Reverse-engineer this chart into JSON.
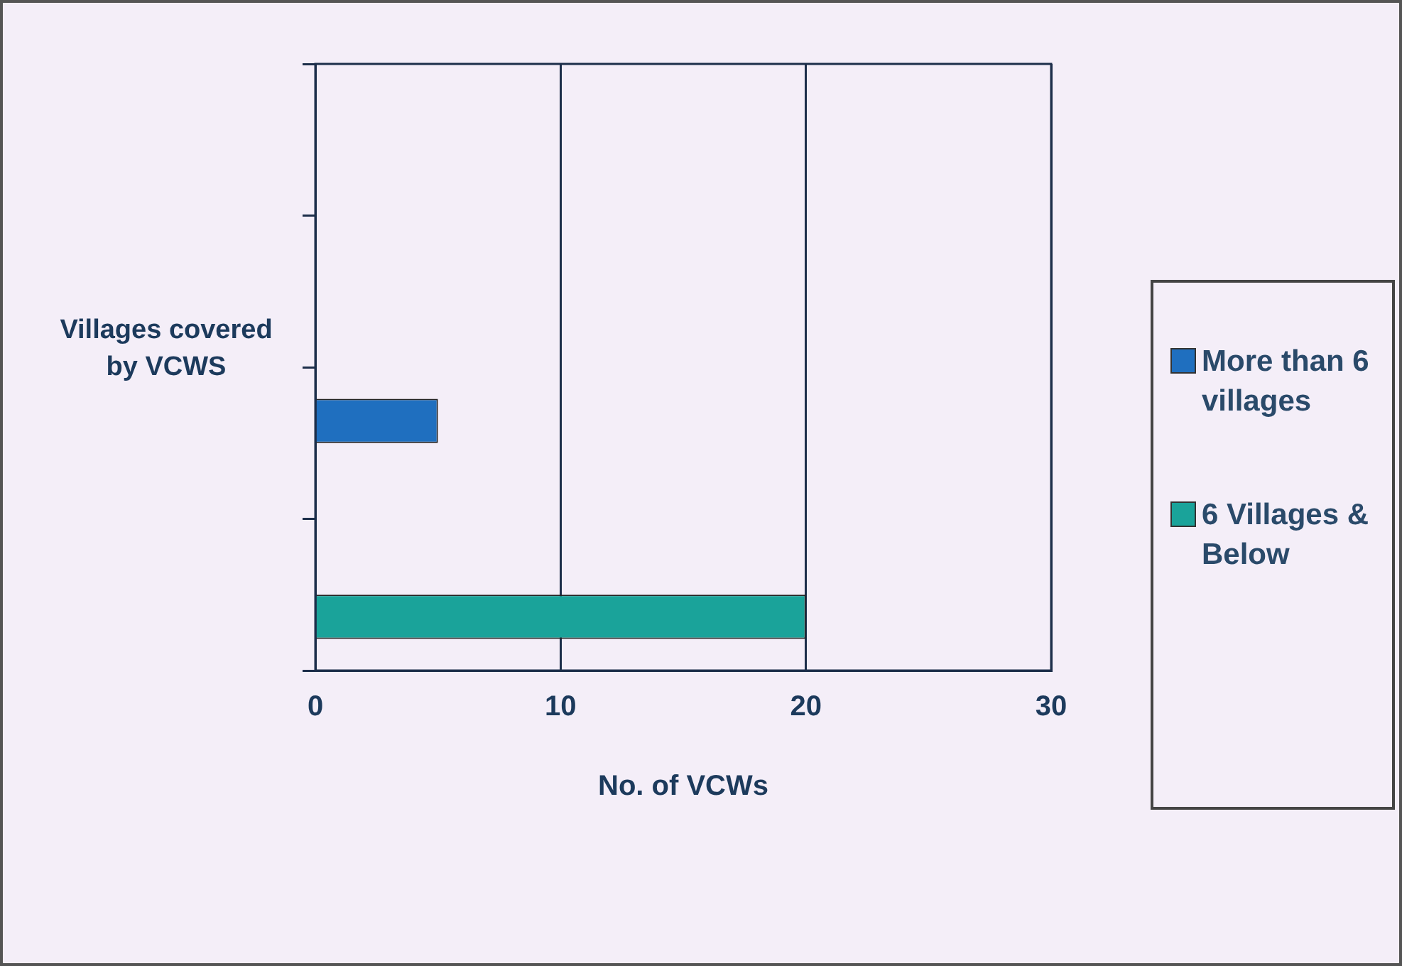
{
  "chart_data": {
    "type": "bar",
    "orientation": "horizontal",
    "xlabel": "No. of VCWs",
    "ylabel": "Villages covered by VCWS",
    "categories": [
      null,
      null,
      null,
      null
    ],
    "series": [
      {
        "name": "More than 6 villages",
        "color": "#1f6fbf",
        "values": [
          null,
          null,
          5,
          null
        ]
      },
      {
        "name": "6 Villages & Below",
        "color": "#1aa39a",
        "values": [
          null,
          null,
          null,
          20
        ]
      }
    ],
    "xlim": [
      0,
      30
    ],
    "xticks": [
      0,
      10,
      20,
      30
    ],
    "grid": "x",
    "legend": "right"
  }
}
